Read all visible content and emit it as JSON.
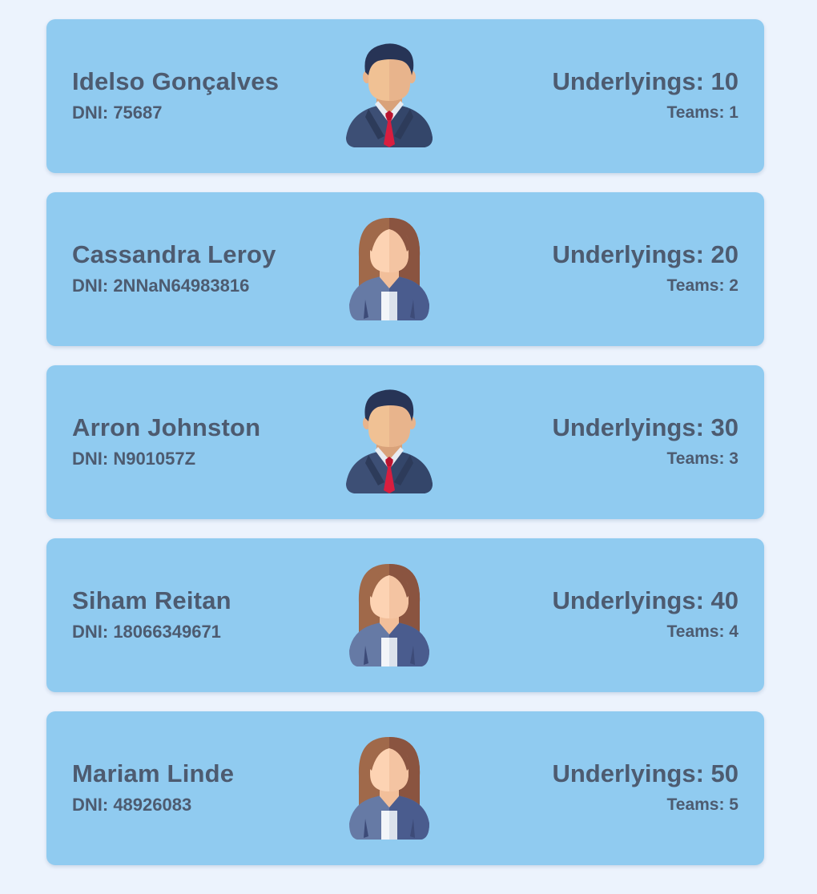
{
  "people": [
    {
      "name": "Idelso Gonçalves",
      "dni": "DNI: 75687",
      "underlyings": "Underlyings: 10",
      "teams": "Teams: 1",
      "avatar": "male-businessman-icon"
    },
    {
      "name": "Cassandra Leroy",
      "dni": "DNI: 2NNaN64983816",
      "underlyings": "Underlyings: 20",
      "teams": "Teams: 2",
      "avatar": "female-businesswoman-icon"
    },
    {
      "name": "Arron Johnston",
      "dni": "DNI: N901057Z",
      "underlyings": "Underlyings: 30",
      "teams": "Teams: 3",
      "avatar": "male-businessman-icon"
    },
    {
      "name": "Siham Reitan",
      "dni": "DNI: 18066349671",
      "underlyings": "Underlyings: 40",
      "teams": "Teams: 4",
      "avatar": "female-businesswoman-icon"
    },
    {
      "name": "Mariam Linde",
      "dni": "DNI: 48926083",
      "underlyings": "Underlyings: 50",
      "teams": "Teams: 5",
      "avatar": "female-businesswoman-icon"
    }
  ],
  "colors": {
    "background": "#ecf3fd",
    "card": "#90cbf0",
    "text": "#4d5b70"
  }
}
